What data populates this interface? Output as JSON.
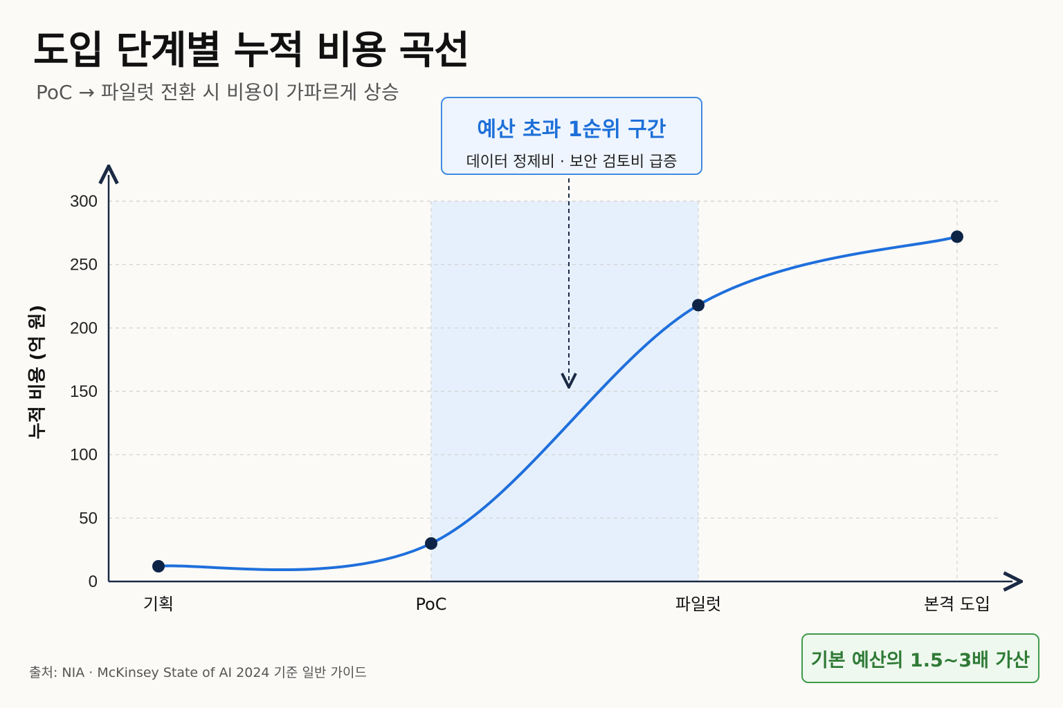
{
  "title": "도입 단계별 누적 비용 곡선",
  "subtitle": "PoC → 파일럿 전환 시 비용이 가파르게 상승",
  "callout": {
    "title": "예산 초과 1순위 구간",
    "subtitle": "데이터 정제비 · 보안 검토비 급증"
  },
  "source": "출처: NIA · McKinsey State of AI 2024 기준 일반 가이드",
  "badge": "기본 예산의 1.5~3배 가산",
  "colors": {
    "line": "#1f6fdc",
    "point": "#0e2447",
    "highlight_band": "#e6f0fc",
    "callout_border": "#3f8ae0",
    "badge_border": "#3e9a4a"
  },
  "chart_data": {
    "type": "line",
    "title": "도입 단계별 누적 비용 곡선",
    "ylabel": "누적 비용 (억 원)",
    "xlabel": "",
    "categories": [
      "기획",
      "PoC",
      "파일럿",
      "본격 도입"
    ],
    "values": [
      12,
      30,
      218,
      272
    ],
    "ylim": [
      0,
      300
    ],
    "yticks": [
      0,
      50,
      100,
      150,
      200,
      250,
      300
    ],
    "grid": true,
    "highlight_range": [
      "PoC",
      "파일럿"
    ]
  }
}
